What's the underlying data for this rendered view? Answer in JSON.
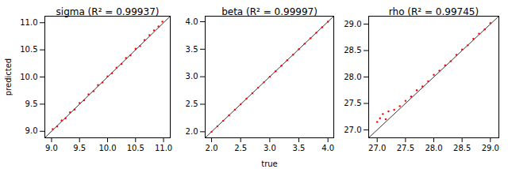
{
  "chart_data": [
    {
      "type": "scatter",
      "title": "sigma (R² = 0.99937)",
      "ylabel": "predicted",
      "color": "red",
      "x": [
        9.02,
        9.1,
        9.18,
        9.25,
        9.33,
        9.41,
        9.5,
        9.58,
        9.66,
        9.75,
        9.83,
        9.91,
        10.0,
        10.08,
        10.16,
        10.25,
        10.33,
        10.41,
        10.5,
        10.58,
        10.66,
        10.75,
        10.83,
        10.91,
        10.98
      ],
      "values": [
        9.04,
        9.09,
        9.2,
        9.24,
        9.35,
        9.4,
        9.52,
        9.57,
        9.68,
        9.74,
        9.85,
        9.9,
        10.01,
        10.07,
        10.17,
        10.24,
        10.35,
        10.4,
        10.52,
        10.57,
        10.68,
        10.77,
        10.86,
        10.93,
        11.02
      ],
      "xlim": [
        8.88,
        11.12
      ],
      "ylim": [
        8.88,
        11.12
      ],
      "xticks": [
        {
          "value": 9,
          "label": "9.0"
        },
        9.5,
        {
          "value": 10,
          "label": "10.0"
        },
        10.5,
        {
          "value": 11,
          "label": "11.0"
        }
      ],
      "yticks": [
        {
          "value": 9,
          "label": "9.0"
        },
        9.5,
        {
          "value": 10,
          "label": "10.0"
        },
        10.5,
        {
          "value": 11,
          "label": "11.0"
        }
      ]
    },
    {
      "type": "scatter",
      "title": "beta (R² = 0.99997)",
      "xlabel": "true",
      "color": "red",
      "x": [
        2.0,
        2.1,
        2.2,
        2.3,
        2.4,
        2.5,
        2.6,
        2.7,
        2.8,
        2.9,
        3.0,
        3.1,
        3.2,
        3.3,
        3.4,
        3.5,
        3.6,
        3.7,
        3.8,
        3.9,
        4.0
      ],
      "values": [
        2.0,
        2.1,
        2.2,
        2.3,
        2.4,
        2.5,
        2.6,
        2.7,
        2.8,
        2.9,
        3.0,
        3.1,
        3.2,
        3.3,
        3.4,
        3.5,
        3.6,
        3.7,
        3.8,
        3.9,
        4.0
      ],
      "xlim": [
        1.89,
        4.1
      ],
      "ylim": [
        1.89,
        4.1
      ],
      "xticks": [
        {
          "value": 2,
          "label": "2.0"
        },
        2.5,
        {
          "value": 3,
          "label": "3.0"
        },
        3.5,
        {
          "value": 4,
          "label": "4.0"
        }
      ],
      "yticks": [
        {
          "value": 2,
          "label": "2.0"
        },
        2.5,
        {
          "value": 3,
          "label": "3.0"
        },
        3.5,
        {
          "value": 4,
          "label": "4.0"
        }
      ]
    },
    {
      "type": "scatter",
      "title": "rho (R² = 0.99745)",
      "color": "red",
      "x": [
        27.0,
        27.05,
        27.1,
        27.15,
        27.2,
        27.3,
        27.4,
        27.5,
        27.6,
        27.7,
        27.8,
        27.9,
        28.0,
        28.1,
        28.2,
        28.3,
        28.4,
        28.5,
        28.6,
        28.7,
        28.8,
        28.9,
        29.0
      ],
      "values": [
        27.15,
        27.22,
        27.3,
        27.2,
        27.35,
        27.38,
        27.45,
        27.55,
        27.63,
        27.75,
        27.82,
        27.92,
        28.04,
        28.12,
        28.22,
        28.3,
        28.42,
        28.52,
        28.6,
        28.72,
        28.82,
        28.9,
        29.02
      ],
      "xlim": [
        26.85,
        29.15
      ],
      "ylim": [
        26.85,
        29.15
      ],
      "xticks": [
        {
          "value": 27,
          "label": "27.0"
        },
        27.5,
        {
          "value": 28,
          "label": "28.0"
        },
        28.5,
        {
          "value": 29,
          "label": "29.0"
        }
      ],
      "yticks": [
        {
          "value": 27,
          "label": "27.0"
        },
        27.5,
        {
          "value": 28,
          "label": "28.0"
        },
        28.5,
        {
          "value": 29,
          "label": "29.0"
        }
      ]
    }
  ]
}
